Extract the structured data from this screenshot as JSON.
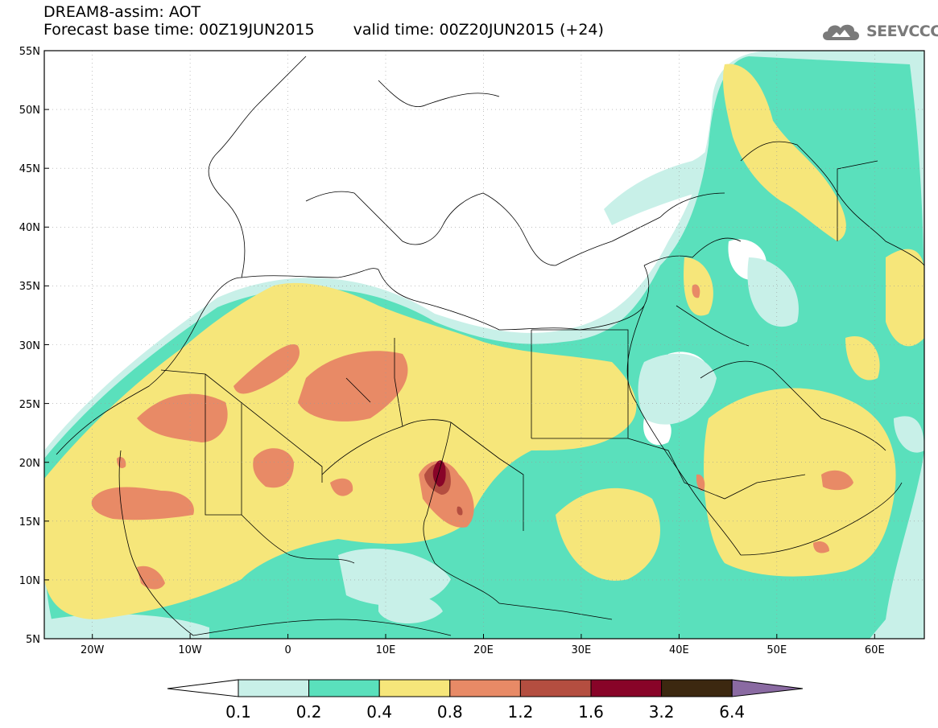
{
  "header": {
    "title": "DREAM8-assim: AOT",
    "base_label": "Forecast base time: 00Z19JUN2015",
    "valid_label": "valid time: 00Z20JUN2015 (+24)"
  },
  "logo": {
    "text": "SEEVCCC",
    "icon": "cloud-logo-icon"
  },
  "map": {
    "lon_range": [
      -25,
      65
    ],
    "lat_range": [
      5,
      55
    ],
    "y_ticks": [
      "5N",
      "10N",
      "15N",
      "20N",
      "25N",
      "30N",
      "35N",
      "40N",
      "45N",
      "50N",
      "55N"
    ],
    "x_ticks": [
      "20W",
      "10W",
      "0",
      "10E",
      "20E",
      "30E",
      "40E",
      "50E",
      "60E"
    ]
  },
  "colorbar": {
    "labels": [
      "0.1",
      "0.2",
      "0.4",
      "0.8",
      "1.2",
      "1.6",
      "3.2",
      "6.4"
    ],
    "colors": [
      "#ffffff",
      "#c8f0e8",
      "#5ae0bc",
      "#f6e67a",
      "#e88a66",
      "#b44e40",
      "#880428",
      "#3c2810",
      "#8a6aa2"
    ]
  }
}
